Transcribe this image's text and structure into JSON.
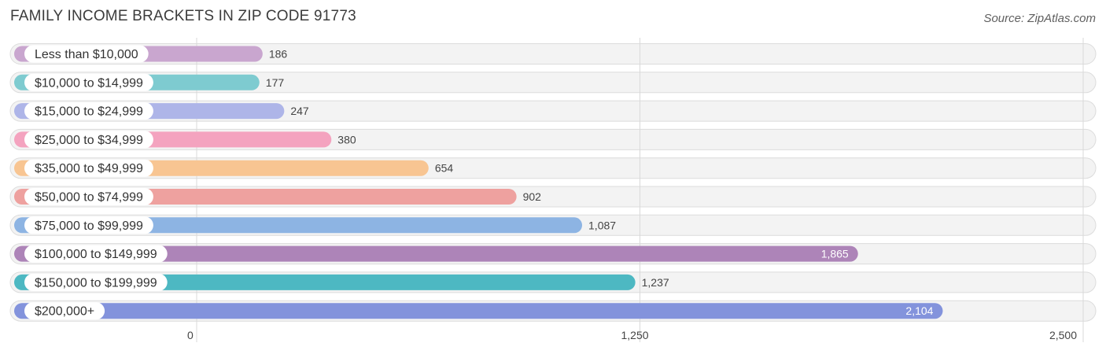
{
  "chart_data": {
    "type": "bar",
    "orientation": "horizontal",
    "title": "FAMILY INCOME BRACKETS IN ZIP CODE 91773",
    "source": "Source: ZipAtlas.com",
    "categories": [
      "Less than $10,000",
      "$10,000 to $14,999",
      "$15,000 to $24,999",
      "$25,000 to $34,999",
      "$35,000 to $49,999",
      "$50,000 to $74,999",
      "$75,000 to $99,999",
      "$100,000 to $149,999",
      "$150,000 to $199,999",
      "$200,000+"
    ],
    "values": [
      186,
      177,
      247,
      380,
      654,
      902,
      1087,
      1865,
      1237,
      2104
    ],
    "value_labels": [
      "186",
      "177",
      "247",
      "380",
      "654",
      "902",
      "1,087",
      "1,865",
      "1,237",
      "2,104"
    ],
    "colors": [
      "#c9a6cf",
      "#7ecbd0",
      "#aeb5e8",
      "#f4a3bf",
      "#f8c592",
      "#eea19f",
      "#8db4e3",
      "#ad84b8",
      "#4db8c2",
      "#8393dc"
    ],
    "xlim": [
      0,
      2500
    ],
    "x_ticks": [
      0,
      1250,
      2500
    ],
    "x_tick_labels": [
      "0",
      "1,250",
      "2,500"
    ],
    "grid": true,
    "legend": "none"
  }
}
